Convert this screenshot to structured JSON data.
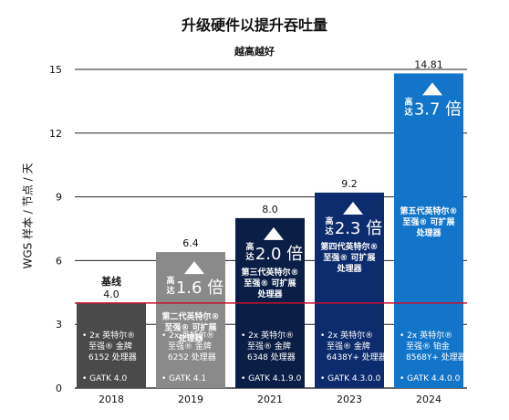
{
  "chart_data": {
    "type": "bar",
    "title": "升级硬件以提升吞吐量",
    "subtitle": "越高越好",
    "ylabel": "WGS 样本 / 节点 / 天",
    "ylim": [
      0,
      15
    ],
    "yticks": [
      0,
      3,
      6,
      9,
      12,
      15
    ],
    "grid": true,
    "categories": [
      "2018",
      "2019",
      "2021",
      "2023",
      "2024"
    ],
    "values": [
      4.0,
      6.4,
      8.0,
      9.2,
      14.81
    ],
    "value_labels": [
      "4.0",
      "6.4",
      "8.0",
      "9.2",
      "14.81"
    ],
    "bar_colors": [
      "#4a4a4a",
      "#8a8a8a",
      "#0b1e45",
      "#0d2c6e",
      "#1375c9"
    ],
    "baseline": {
      "value": 4.0,
      "label": "基线",
      "color": "#c8102e"
    },
    "speedups": [
      null,
      {
        "prefix": "高达",
        "value": "1.6 倍"
      },
      {
        "prefix": "高达",
        "value": "2.0 倍"
      },
      {
        "prefix": "高达",
        "value": "2.3 倍"
      },
      {
        "prefix": "高达",
        "value": "3.7 倍"
      }
    ],
    "new_cpu": [
      null,
      "第二代英特尔® 至强® 可扩展 处理器",
      "第三代英特尔® 至强® 可扩展 处理器",
      "第四代英特尔® 至强® 可扩展 处理器",
      "第五代英特尔® 至强® 可扩展 处理器"
    ],
    "specs": [
      "2x 英特尔® 至强® 金牌 6152 处理器",
      "2x 英特尔® 至强® 金牌 6252 处理器",
      "2x 英特尔® 至强® 金牌 6348 处理器",
      "2x 英特尔® 至强® 金牌 6438Y+ 处理器",
      "2x 英特尔® 至强® 铂金 8568Y+ 处理器"
    ],
    "gatk": [
      "GATK 4.0",
      "GATK 4.1",
      "GATK 4.1.9.0",
      "GATK 4.3.0.0",
      "GATK 4.4.0.0"
    ]
  }
}
